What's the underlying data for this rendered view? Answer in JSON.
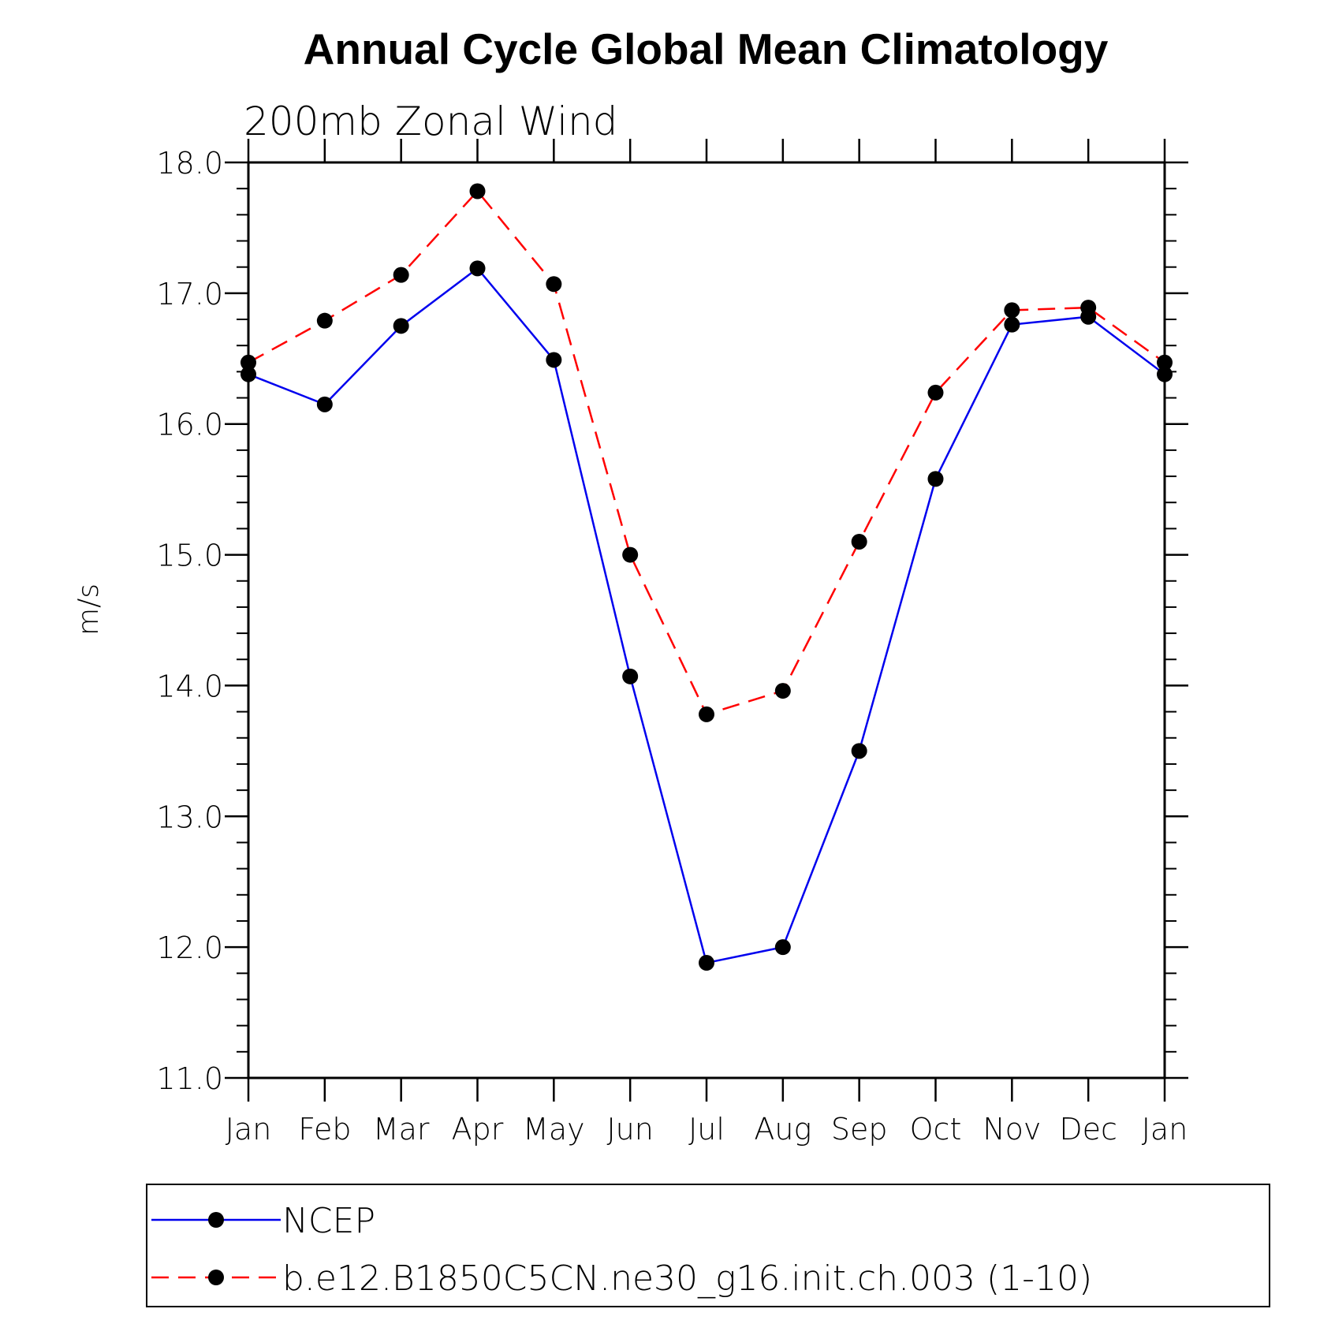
{
  "chart_data": {
    "type": "line",
    "title": "Annual Cycle Global Mean Climatology",
    "subtitle": "200mb Zonal Wind",
    "xlabel": "",
    "ylabel": "m/s",
    "categories": [
      "Jan",
      "Feb",
      "Mar",
      "Apr",
      "May",
      "Jun",
      "Jul",
      "Aug",
      "Sep",
      "Oct",
      "Nov",
      "Dec",
      "Jan"
    ],
    "ylim": [
      11.0,
      18.0
    ],
    "y_ticks": [
      "11.0",
      "12.0",
      "13.0",
      "14.0",
      "15.0",
      "16.0",
      "17.0",
      "18.0"
    ],
    "y_tick_values": [
      11,
      12,
      13,
      14,
      15,
      16,
      17,
      18
    ],
    "series": [
      {
        "name": "NCEP",
        "color": "#0000ee",
        "dash": "solid",
        "values": [
          16.38,
          16.15,
          16.75,
          17.19,
          16.49,
          14.07,
          11.88,
          12.0,
          13.5,
          15.58,
          16.76,
          16.82,
          16.38
        ]
      },
      {
        "name": "b.e12.B1850C5CN.ne30_g16.init.ch.003 (1-10)",
        "color": "#ff0000",
        "dash": "dashed",
        "values": [
          16.47,
          16.79,
          17.14,
          17.78,
          17.07,
          15.0,
          13.78,
          13.96,
          15.1,
          16.24,
          16.87,
          16.89,
          16.47
        ]
      }
    ],
    "marker_color": "#000000",
    "legend_position": "bottom"
  }
}
